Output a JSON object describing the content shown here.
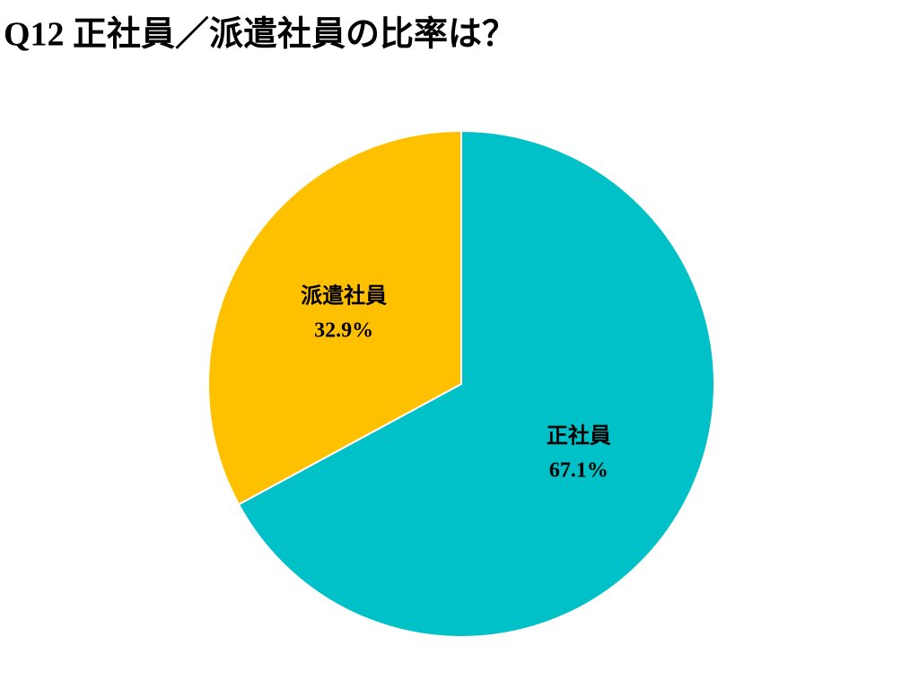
{
  "chart_data": {
    "type": "pie",
    "title": "Q12 正社員／派遣社員の比率は？",
    "categories": [
      "正社員",
      "派遣社員"
    ],
    "values": [
      67.1,
      32.9
    ],
    "value_labels": [
      "67.1%",
      "32.9%"
    ],
    "colors": [
      "#00c0c8",
      "#ffc000"
    ]
  }
}
